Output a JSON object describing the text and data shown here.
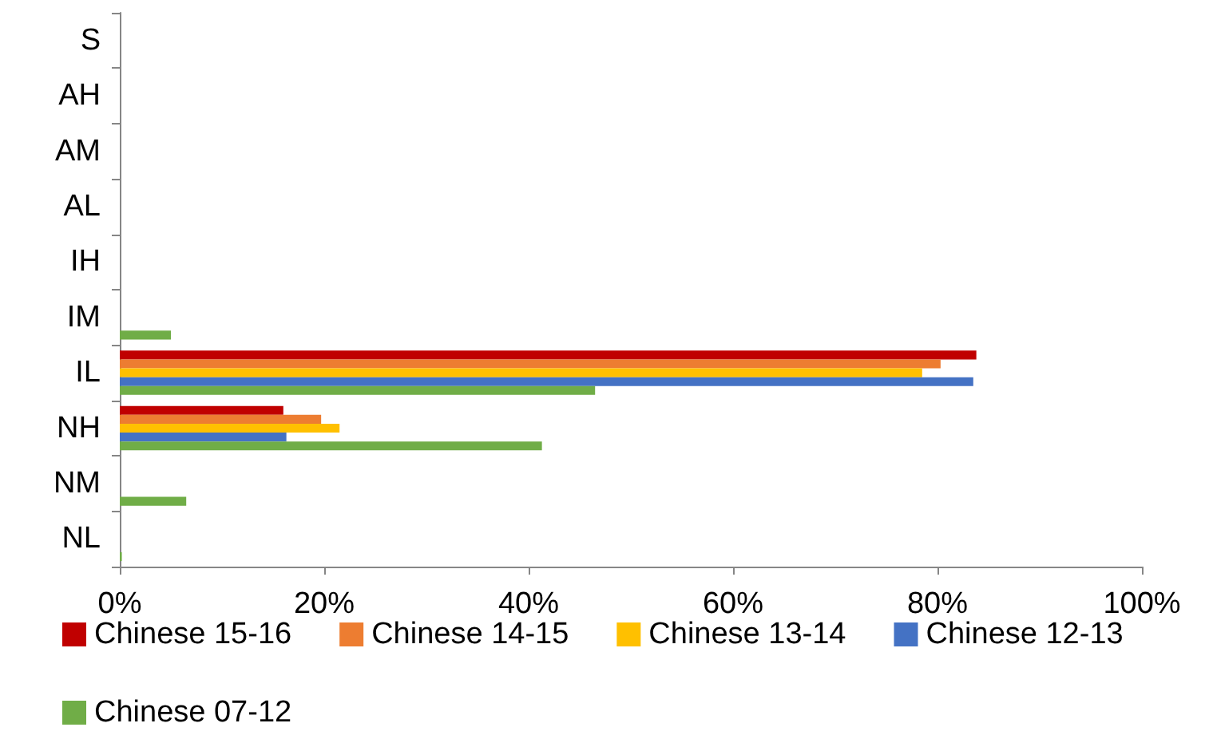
{
  "chart_data": {
    "type": "bar",
    "orientation": "horizontal",
    "categories": [
      "S",
      "AH",
      "AM",
      "AL",
      "IH",
      "IM",
      "IL",
      "NH",
      "NM",
      "NL"
    ],
    "series": [
      {
        "name": "Chinese 15-16",
        "color": "#c00000",
        "values": [
          null,
          null,
          null,
          null,
          null,
          null,
          83.8,
          16.0,
          null,
          null
        ]
      },
      {
        "name": "Chinese 14-15",
        "color": "#ed7d31",
        "values": [
          null,
          null,
          null,
          null,
          null,
          null,
          80.3,
          19.7,
          null,
          null
        ]
      },
      {
        "name": "Chinese 13-14",
        "color": "#ffc000",
        "values": [
          null,
          null,
          null,
          null,
          null,
          null,
          78.5,
          21.5,
          null,
          null
        ]
      },
      {
        "name": "Chinese 12-13",
        "color": "#4472c4",
        "values": [
          null,
          null,
          null,
          null,
          null,
          null,
          83.5,
          16.3,
          null,
          null
        ]
      },
      {
        "name": "Chinese 07-12",
        "color": "#70ad47",
        "values": [
          null,
          null,
          null,
          null,
          null,
          5.0,
          46.5,
          41.3,
          6.5,
          0.2
        ]
      }
    ],
    "xlim": [
      0,
      100
    ],
    "xticks": [
      {
        "value": 0,
        "label": "0%"
      },
      {
        "value": 20,
        "label": "20%"
      },
      {
        "value": 40,
        "label": "40%"
      },
      {
        "value": 60,
        "label": "60%"
      },
      {
        "value": 80,
        "label": "80%"
      },
      {
        "value": 100,
        "label": "100%"
      }
    ],
    "grid": false,
    "legend": "bottom"
  }
}
